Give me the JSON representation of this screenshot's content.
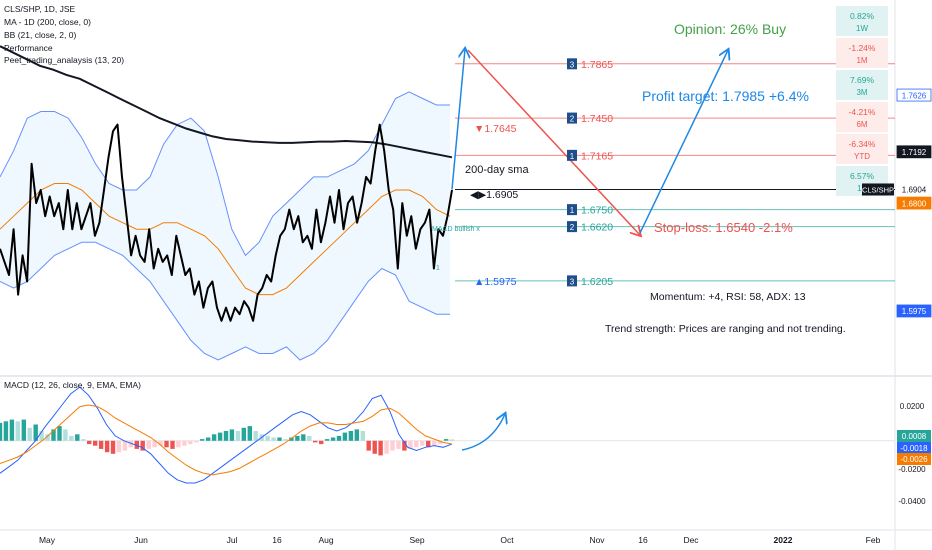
{
  "header": {
    "symbol_line": "CLS/SHP, 1D, JSE",
    "indicators": [
      "MA - 1D (200, close, 0)",
      "BB (21, close, 2, 0)",
      "Performance",
      "Peet_trading_analaysis (13, 20)"
    ]
  },
  "macd_title": "MACD (12, 26, close, 9, EMA, EMA)",
  "opinion": "Opinion: 26% Buy",
  "performance": [
    {
      "value": "0.82%",
      "period": "1W",
      "color": "#26a69a"
    },
    {
      "value": "-1.24%",
      "period": "1M",
      "color": "#ef5350"
    },
    {
      "value": "7.69%",
      "period": "3M",
      "color": "#26a69a"
    },
    {
      "value": "-4.21%",
      "period": "6M",
      "color": "#ef5350"
    },
    {
      "value": "-6.34%",
      "period": "YTD",
      "color": "#ef5350"
    },
    {
      "value": "6.57%",
      "period": "1Y",
      "color": "#26a69a"
    }
  ],
  "annotations": {
    "profit_target": "Profit target: 1.7985 +6.4%",
    "stop_loss": "Stop-loss: 1.6540 -2.1%",
    "sma_label": "200-day sma",
    "momentum": "Momentum: +4, RSI: 58, ADX: 13",
    "trend": "Trend strength: Prices are ranging and not trending.",
    "macd_bullish": "MACD bullish x",
    "high_marker": "▼1.7645",
    "low_marker": "▲1.5975",
    "current_marker": "◀▶1.6905",
    "small_one": "1"
  },
  "levels": [
    {
      "badge": "3",
      "value": "1.7865",
      "color": "#ef5350"
    },
    {
      "badge": "2",
      "value": "1.7450",
      "color": "#ef5350"
    },
    {
      "badge": "1",
      "value": "1.7165",
      "color": "#ef5350"
    },
    {
      "badge": "1",
      "value": "1.6750",
      "color": "#26a69a"
    },
    {
      "badge": "2",
      "value": "1.6620",
      "color": "#26a69a"
    },
    {
      "badge": "3",
      "value": "1.6205",
      "color": "#26a69a"
    }
  ],
  "price_axis": [
    {
      "text": "1.7626",
      "bg": "#ffffff",
      "fg": "#2962ff",
      "border": "#2962ff"
    },
    {
      "text": "1.7192",
      "bg": "#131722",
      "fg": "#ffffff",
      "border": "#131722"
    },
    {
      "text": "1.6904",
      "bg": "#ffffff",
      "fg": "#131722",
      "border": "#ffffff"
    },
    {
      "text": "1.6800",
      "bg": "#f57c00",
      "fg": "#ffffff",
      "border": "#f57c00"
    },
    {
      "text": "1.5975",
      "bg": "#2962ff",
      "fg": "#ffffff",
      "border": "#2962ff"
    }
  ],
  "symbol_tag": "CLS/SHP",
  "macd_axis": [
    {
      "text": "0.0200",
      "boxed": false,
      "bg": "",
      "fg": "#131722"
    },
    {
      "text": "0.0008",
      "boxed": true,
      "bg": "#26a69a",
      "fg": "#ffffff"
    },
    {
      "text": "-0.0018",
      "boxed": true,
      "bg": "#2962ff",
      "fg": "#ffffff"
    },
    {
      "text": "-0.0026",
      "boxed": true,
      "bg": "#f57c00",
      "fg": "#ffffff"
    },
    {
      "text": "-0.0200",
      "boxed": false,
      "bg": "",
      "fg": "#131722"
    },
    {
      "text": "-0.0400",
      "boxed": false,
      "bg": "",
      "fg": "#131722"
    }
  ],
  "time_axis": [
    "May",
    "Jun",
    "Jul",
    "16",
    "Aug",
    "Sep",
    "Oct",
    "Nov",
    "16",
    "Dec",
    "2022",
    "Feb"
  ],
  "chart_data": {
    "type": "line",
    "title": "CLS/SHP, 1D, JSE",
    "price": [
      1.645,
      1.635,
      1.625,
      1.66,
      1.61,
      1.64,
      1.62,
      1.71,
      1.68,
      1.69,
      1.67,
      1.685,
      1.67,
      1.68,
      1.66,
      1.69,
      1.66,
      1.68,
      1.66,
      1.67,
      1.68,
      1.655,
      1.665,
      1.69,
      1.715,
      1.735,
      1.74,
      1.7,
      1.67,
      1.64,
      1.655,
      1.64,
      1.635,
      1.66,
      1.63,
      1.645,
      1.635,
      1.64,
      1.625,
      1.655,
      1.64,
      1.625,
      1.63,
      1.61,
      1.62,
      1.6,
      1.615,
      1.62,
      1.6,
      1.59,
      1.6,
      1.59,
      1.6,
      1.595,
      1.605,
      1.6,
      1.59,
      1.61,
      1.615,
      1.625,
      1.62,
      1.64,
      1.655,
      1.66,
      1.675,
      1.66,
      1.67,
      1.65,
      1.655,
      1.645,
      1.675,
      1.65,
      1.665,
      1.685,
      1.665,
      1.69,
      1.66,
      1.68,
      1.685,
      1.665,
      1.68,
      1.7,
      1.695,
      1.72,
      1.74,
      1.72,
      1.69,
      1.675,
      1.63,
      1.68,
      1.655,
      1.67,
      1.645,
      1.66,
      1.665,
      1.675,
      1.63,
      1.66,
      1.655,
      1.67,
      1.69
    ],
    "sma200": [
      1.8,
      1.795,
      1.79,
      1.785,
      1.782,
      1.778,
      1.775,
      1.77,
      1.765,
      1.76,
      1.755,
      1.75,
      1.745,
      1.741,
      1.737,
      1.734,
      1.731,
      1.729,
      1.728,
      1.727,
      1.7265,
      1.726,
      1.726,
      1.7265,
      1.727,
      1.727,
      1.7275,
      1.727,
      1.7265,
      1.725,
      1.723,
      1.721,
      1.719,
      1.717,
      1.715
    ],
    "bb_upper": [
      1.7,
      1.72,
      1.745,
      1.75,
      1.75,
      1.745,
      1.73,
      1.71,
      1.695,
      1.69,
      1.69,
      1.7,
      1.725,
      1.74,
      1.745,
      1.735,
      1.7,
      1.66,
      1.64,
      1.65,
      1.67,
      1.68,
      1.69,
      1.7,
      1.7,
      1.705,
      1.71,
      1.72,
      1.74,
      1.76,
      1.765,
      1.76,
      1.755,
      1.755
    ],
    "bb_mid": [
      1.66,
      1.67,
      1.68,
      1.69,
      1.695,
      1.695,
      1.69,
      1.68,
      1.67,
      1.665,
      1.66,
      1.66,
      1.665,
      1.665,
      1.66,
      1.655,
      1.645,
      1.63,
      1.615,
      1.61,
      1.61,
      1.615,
      1.625,
      1.635,
      1.645,
      1.655,
      1.665,
      1.675,
      1.685,
      1.69,
      1.69,
      1.685,
      1.675,
      1.67
    ],
    "bb_lower": [
      1.62,
      1.615,
      1.62,
      1.63,
      1.64,
      1.645,
      1.65,
      1.65,
      1.645,
      1.64,
      1.63,
      1.62,
      1.605,
      1.59,
      1.575,
      1.565,
      1.56,
      1.565,
      1.57,
      1.565,
      1.565,
      1.57,
      1.56,
      1.565,
      1.575,
      1.59,
      1.605,
      1.62,
      1.63,
      1.625,
      1.605,
      1.6,
      1.595,
      1.595
    ],
    "macd_line": [
      -0.02,
      -0.016,
      -0.012,
      -0.006,
      0.0,
      0.008,
      0.015,
      0.022,
      0.029,
      0.033,
      0.028,
      0.02,
      0.01,
      0.003,
      0.0,
      -0.002,
      -0.004,
      -0.008,
      -0.014,
      -0.02,
      -0.024,
      -0.026,
      -0.026,
      -0.024,
      -0.02,
      -0.016,
      -0.012,
      -0.008,
      -0.004,
      0.0,
      0.004,
      0.008,
      0.012,
      0.016,
      0.018,
      0.016,
      0.012,
      0.008,
      0.006,
      0.008,
      0.012,
      0.018,
      0.026,
      0.028,
      0.018,
      0.004,
      -0.004,
      -0.006,
      -0.004,
      -0.003,
      -0.004,
      -0.002
    ],
    "macd_signal": [
      -0.014,
      -0.012,
      -0.01,
      -0.007,
      -0.003,
      0.001,
      0.006,
      0.011,
      0.016,
      0.021,
      0.022,
      0.021,
      0.018,
      0.014,
      0.011,
      0.008,
      0.005,
      0.002,
      -0.002,
      -0.007,
      -0.011,
      -0.015,
      -0.018,
      -0.02,
      -0.021,
      -0.02,
      -0.019,
      -0.017,
      -0.014,
      -0.011,
      -0.008,
      -0.005,
      -0.002,
      0.002,
      0.006,
      0.009,
      0.011,
      0.011,
      0.01,
      0.01,
      0.011,
      0.012,
      0.015,
      0.019,
      0.02,
      0.017,
      0.012,
      0.007,
      0.003,
      0.001,
      -0.001,
      -0.002
    ],
    "macd_hist": [
      0.011,
      0.012,
      0.013,
      0.012,
      0.013,
      0.008,
      0.01,
      0.006,
      0.004,
      0.007,
      0.009,
      0.007,
      0.003,
      0.004,
      0.001,
      -0.002,
      -0.003,
      -0.005,
      -0.007,
      -0.008,
      -0.007,
      -0.006,
      -0.004,
      -0.005,
      -0.006,
      -0.005,
      -0.004,
      -0.003,
      -0.004,
      -0.005,
      -0.004,
      -0.003,
      -0.002,
      -0.001,
      0.001,
      0.002,
      0.004,
      0.005,
      0.006,
      0.007,
      0.006,
      0.008,
      0.009,
      0.006,
      0.004,
      0.003,
      0.002,
      0.002,
      0.001,
      0.002,
      0.003,
      0.004,
      0.003,
      -0.001,
      -0.002,
      0.001,
      0.002,
      0.003,
      0.005,
      0.006,
      0.007,
      0.006,
      -0.006,
      -0.008,
      -0.009,
      -0.008,
      -0.006,
      -0.005,
      -0.006,
      -0.005,
      -0.004,
      -0.003,
      -0.004,
      -0.003,
      -0.002,
      0.001,
      0.0008
    ],
    "price_ylim": [
      1.56,
      1.82
    ],
    "macd_ylim": [
      -0.05,
      0.03
    ],
    "levels": [
      1.7865,
      1.745,
      1.7165,
      1.675,
      1.662,
      1.6205
    ],
    "current": 1.6904,
    "profit_target": 1.7985,
    "stop_loss": 1.654
  }
}
